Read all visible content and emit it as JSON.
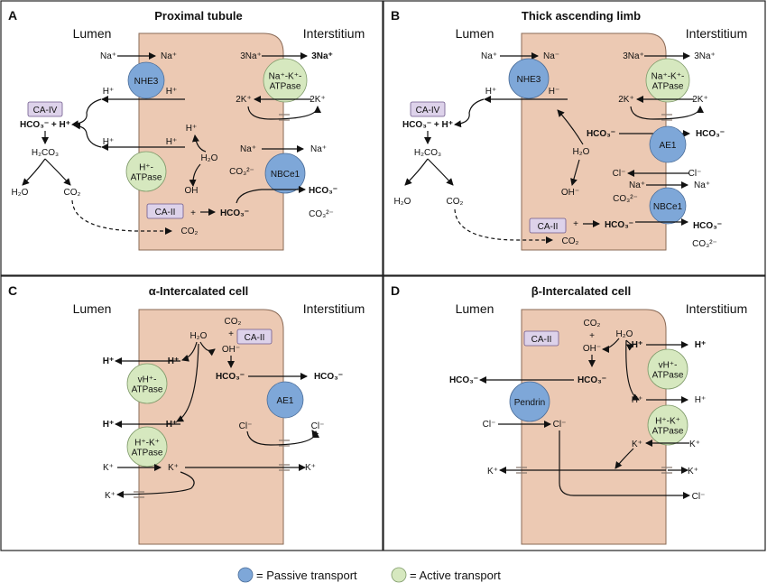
{
  "colors": {
    "cell": "#ecc9b3",
    "cell_border": "#8a6a56",
    "passive": "#7ea7d8",
    "active": "#d6e8bf",
    "enzyme": "#ddd2ea",
    "enzyme_border": "#6f5a8c"
  },
  "legend": {
    "passive": "= Passive transport",
    "active": "= Active transport"
  },
  "panels": [
    {
      "letter": "A",
      "title": "Proximal tubule",
      "lumen": "Lumen",
      "interstitium": "Interstitium",
      "transporters": [
        "NHE3",
        "H⁺-ATPase",
        "Na⁺-K⁺-ATPase",
        "NBCe1"
      ],
      "enzymes": [
        "CA-IV",
        "CA-II"
      ],
      "labels": [
        "Na⁺",
        "Na⁺",
        "3Na⁺",
        "3Na⁺",
        "H⁺",
        "H⁺",
        "2K⁺",
        "2K⁺",
        "HCO₃⁻ + H⁺",
        "H⁺",
        "H⁺",
        "H⁺",
        "H₂O",
        "H₂CO₃",
        "Na⁺",
        "Na⁺",
        "CO₃²⁻",
        "OH",
        "H₂O",
        "CO₂",
        "HCO₃⁻",
        "+",
        "HCO₃⁻",
        "CO₃²⁻",
        "CO₂"
      ]
    },
    {
      "letter": "B",
      "title": "Thick ascending limb",
      "lumen": "Lumen",
      "interstitium": "Interstitium",
      "transporters": [
        "NHE3",
        "Na⁺-K⁺-ATPase",
        "AE1",
        "NBCe1"
      ],
      "enzymes": [
        "CA-IV",
        "CA-II"
      ],
      "labels": [
        "Na⁺",
        "Na⁻",
        "3Na⁺",
        "3Na⁺",
        "H⁺",
        "H⁻",
        "2K⁺",
        "2K⁺",
        "HCO₃⁻ + H⁺",
        "HCO₃⁻",
        "HCO₃⁻",
        "H₂CO₃",
        "H₂O",
        "Cl⁻",
        "Cl⁻",
        "Na⁺",
        "Na⁺",
        "OH⁻",
        "CO₃²⁻",
        "H₂O",
        "CO₂",
        "+",
        "HCO₃⁻",
        "HCO₃⁻",
        "CO₂",
        "CO₃²⁻"
      ]
    },
    {
      "letter": "C",
      "title": "α-Intercalated cell",
      "lumen": "Lumen",
      "interstitium": "Interstitium",
      "transporters": [
        "vH⁺-ATPase",
        "H⁺-K⁺ ATPase",
        "AE1"
      ],
      "enzymes": [
        "CA-II"
      ],
      "labels": [
        "H₂O",
        "CO₂",
        "+",
        "OH⁻",
        "H⁺",
        "H⁺",
        "HCO₃⁻",
        "HCO₃⁻",
        "H⁺",
        "H⁺",
        "Cl⁻",
        "Cl⁻",
        "K⁺",
        "K⁺",
        "K⁺",
        "K⁺"
      ]
    },
    {
      "letter": "D",
      "title": "β-Intercalated cell",
      "lumen": "Lumen",
      "interstitium": "Interstitium",
      "transporters": [
        "vH⁺-ATPase",
        "Pendrin",
        "H⁺-K⁺ ATPase"
      ],
      "enzymes": [
        "CA-II"
      ],
      "labels": [
        "CO₂",
        "H₂O",
        "+",
        "OH⁻",
        "H⁺",
        "H⁺",
        "HCO₃⁻",
        "HCO₃⁻",
        "H⁺",
        "H⁺",
        "Cl⁻",
        "Cl⁻",
        "K⁺",
        "K⁺",
        "K⁺",
        "K⁺",
        "Cl⁻"
      ]
    }
  ]
}
